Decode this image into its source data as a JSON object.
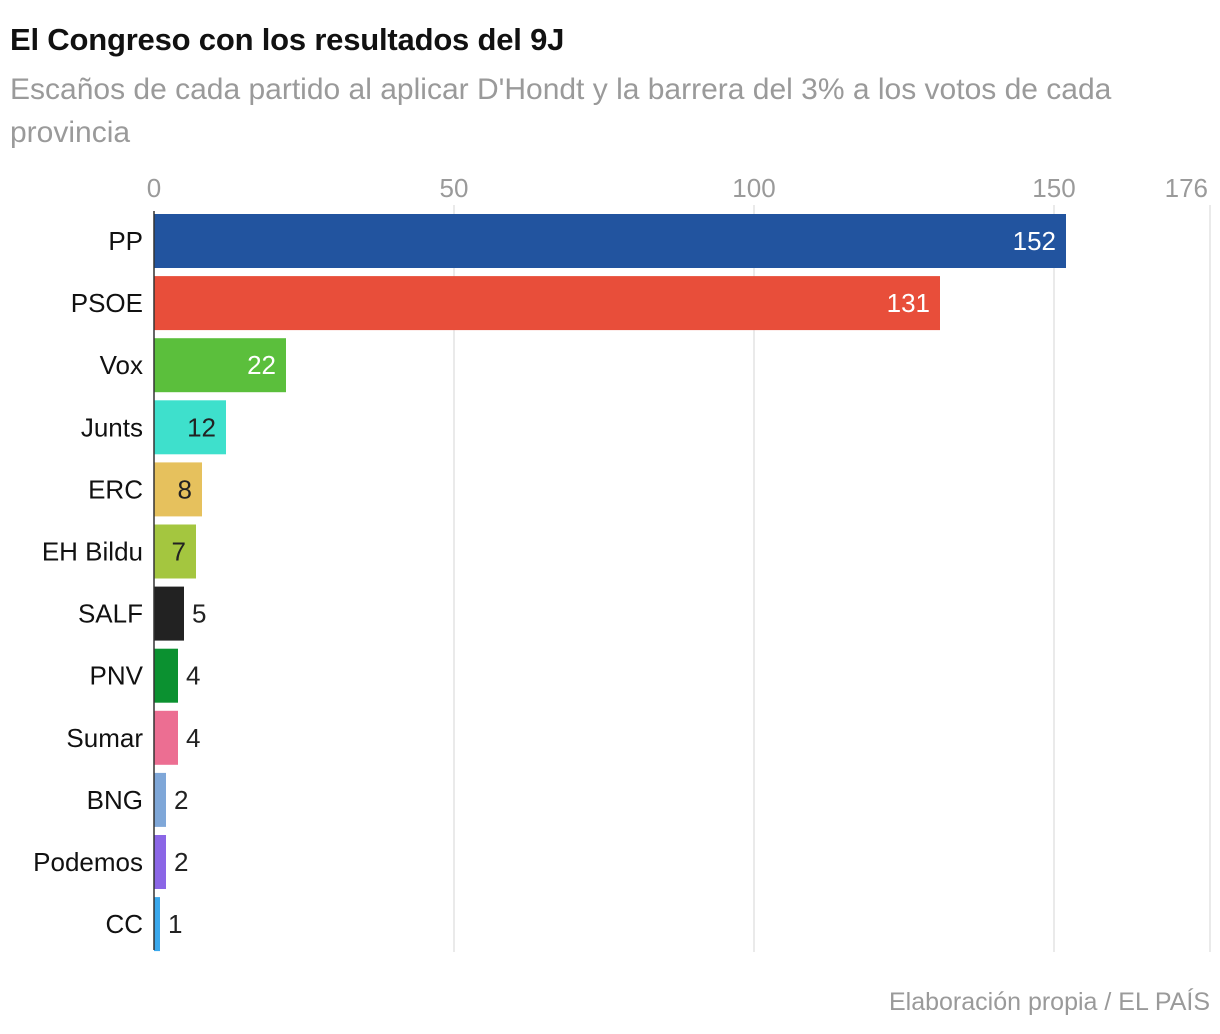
{
  "chart_data": {
    "type": "bar",
    "orientation": "horizontal",
    "title": "El Congreso con los resultados del 9J",
    "subtitle": "Escaños de cada partido al aplicar D'Hondt y la barrera del 3% a los votos de cada provincia",
    "categories": [
      "PP",
      "PSOE",
      "Vox",
      "Junts",
      "ERC",
      "EH Bildu",
      "SALF",
      "PNV",
      "Sumar",
      "BNG",
      "Podemos",
      "CC"
    ],
    "values": [
      152,
      131,
      22,
      12,
      8,
      7,
      5,
      4,
      4,
      2,
      2,
      1
    ],
    "colors": [
      "#22549f",
      "#e84e3a",
      "#5bbf3c",
      "#3ee0cc",
      "#e6c15d",
      "#a4c63f",
      "#222222",
      "#0b9130",
      "#ec6e92",
      "#7fa7d8",
      "#8b66e6",
      "#3aa8ec"
    ],
    "value_label_colors": [
      "#ffffff",
      "#ffffff",
      "#ffffff",
      "#222222",
      "#222222",
      "#222222",
      "#222222",
      "#222222",
      "#222222",
      "#222222",
      "#222222",
      "#222222"
    ],
    "xticks": [
      0,
      50,
      100,
      150,
      176
    ],
    "xlim": [
      0,
      176
    ],
    "xlabel": "",
    "ylabel": "",
    "grid": true,
    "source": "Elaboración propia / EL PAÍS"
  }
}
